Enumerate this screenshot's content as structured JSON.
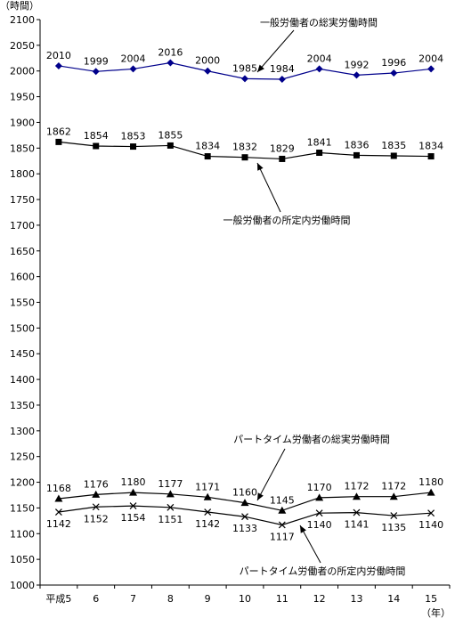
{
  "chart_data": {
    "type": "line",
    "y_unit_label": "（時間）",
    "x_unit_label": "（年）",
    "categories": [
      "平成5",
      "6",
      "7",
      "8",
      "9",
      "10",
      "11",
      "12",
      "13",
      "14",
      "15"
    ],
    "ylim": [
      1000,
      2100
    ],
    "y_ticks": [
      1000,
      1050,
      1100,
      1150,
      1200,
      1250,
      1300,
      1350,
      1400,
      1450,
      1500,
      1550,
      1600,
      1650,
      1700,
      1750,
      1800,
      1850,
      1900,
      1950,
      2000,
      2050,
      2100
    ],
    "grid": false,
    "legend": "annotations",
    "series": [
      {
        "name": "一般労働者の総実労働時間",
        "values": [
          2010,
          1999,
          2004,
          2016,
          2000,
          1985,
          1984,
          2004,
          1992,
          1996,
          2004
        ],
        "color": "#00008b",
        "marker": "diamond",
        "label_pos": "above"
      },
      {
        "name": "一般労働者の所定内労働時間",
        "values": [
          1862,
          1854,
          1853,
          1855,
          1834,
          1832,
          1829,
          1841,
          1836,
          1835,
          1834
        ],
        "color": "#000000",
        "marker": "square",
        "label_pos": "above"
      },
      {
        "name": "パートタイム労働者の総実労働時間",
        "values": [
          1168,
          1176,
          1180,
          1177,
          1171,
          1160,
          1145,
          1170,
          1172,
          1172,
          1180
        ],
        "color": "#000000",
        "marker": "triangle",
        "label_pos": "above"
      },
      {
        "name": "パートタイム労働者の所定内労働時間",
        "values": [
          1142,
          1152,
          1154,
          1151,
          1142,
          1133,
          1117,
          1140,
          1141,
          1135,
          1140
        ],
        "color": "#000000",
        "marker": "x",
        "label_pos": "below"
      }
    ]
  }
}
